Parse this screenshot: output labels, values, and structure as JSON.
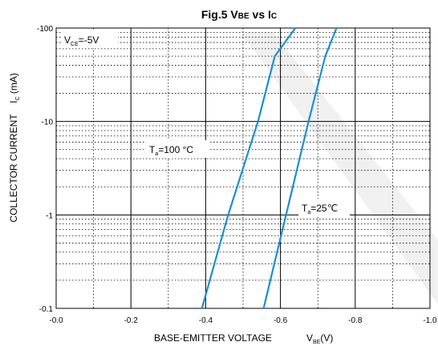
{
  "chart_data": {
    "type": "line",
    "title": {
      "prefix": "Fig.5  V",
      "sub1": "BE",
      "mid": "  vs  I",
      "sub2": "C"
    },
    "xlabel": {
      "main": "BASE-EMITTER VOLTAGE",
      "var": "V",
      "sub": "BE",
      "unit": "(V)"
    },
    "ylabel": {
      "main": "COLLECTOR CURRENT",
      "var": "I",
      "sub": "C",
      "unit": " (mA)"
    },
    "xlim": [
      0.0,
      -1.0
    ],
    "ylim": [
      -0.1,
      -100
    ],
    "yscale": "log",
    "grid": true,
    "x_ticks": [
      "-0.0",
      "-0.2",
      "-0.4",
      "-0.6",
      "-0.8",
      "-1.0"
    ],
    "x_tick_values": [
      0.0,
      -0.2,
      -0.4,
      -0.6,
      -0.8,
      -1.0
    ],
    "y_ticks": [
      "-0.1",
      "-1",
      "-10",
      "-100"
    ],
    "y_tick_values": [
      -0.1,
      -1,
      -10,
      -100
    ],
    "annotation": {
      "var": "V",
      "sub": "CE",
      "value": "=-5V"
    },
    "series": [
      {
        "name": "Ta=100°C",
        "label": {
          "var": "T",
          "sub": "a",
          "value": "=100 °C"
        },
        "color": "#1a8fd0",
        "x": [
          -0.39,
          -0.46,
          -0.54,
          -0.585,
          -0.64
        ],
        "y": [
          -0.1,
          -1,
          -10,
          -50,
          -100
        ]
      },
      {
        "name": "Ta=25°C",
        "label": {
          "var": "T",
          "sub": "a",
          "value": "=25℃"
        },
        "color": "#1a8fd0",
        "x": [
          -0.555,
          -0.615,
          -0.675,
          -0.72,
          -0.75
        ],
        "y": [
          -0.1,
          -1,
          -10,
          -50,
          -100
        ]
      }
    ],
    "colors": {
      "curve": "#1a8fd0",
      "grid": "#000000",
      "watermark": "#efefef"
    }
  }
}
